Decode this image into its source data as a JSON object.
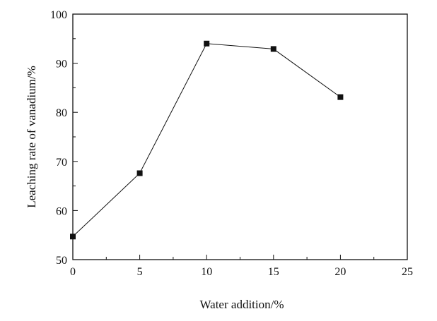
{
  "chart_data": {
    "type": "line",
    "title": "",
    "xlabel": "Water addition/%",
    "ylabel": "Leaching rate of vanadium/%",
    "xlim": [
      0,
      25
    ],
    "ylim": [
      50,
      100
    ],
    "xticks": [
      0,
      5,
      10,
      15,
      20,
      25
    ],
    "yticks": [
      50,
      60,
      70,
      80,
      90,
      100
    ],
    "grid": false,
    "legend": "none",
    "marker": "square",
    "series": [
      {
        "x": [
          0,
          5,
          10,
          15,
          20
        ],
        "y": [
          54.7,
          67.6,
          94.0,
          92.9,
          83.1
        ]
      }
    ]
  }
}
